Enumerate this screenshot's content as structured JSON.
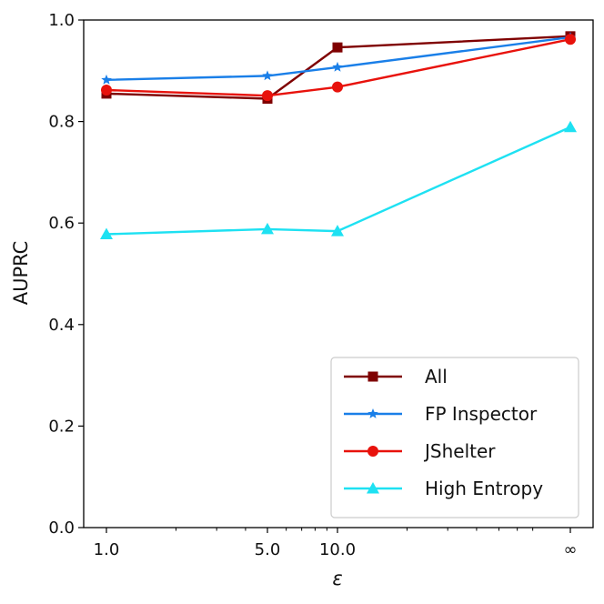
{
  "chart_data": {
    "type": "line",
    "title": "",
    "xlabel": "ε",
    "ylabel": "AUPRC",
    "x_scale": "log",
    "categories": [
      "1.0",
      "5.0",
      "10.0",
      "∞"
    ],
    "ylim": [
      0.0,
      1.0
    ],
    "yticks": [
      "0.0",
      "0.2",
      "0.4",
      "0.6",
      "0.8",
      "1.0"
    ],
    "grid": false,
    "legend_position": "lower-right",
    "series": [
      {
        "name": "All",
        "color": "#7f0000",
        "marker": "square",
        "values": [
          0.855,
          0.845,
          0.946,
          0.968
        ]
      },
      {
        "name": "FP Inspector",
        "color": "#1a7fe8",
        "marker": "star",
        "values": [
          0.882,
          0.89,
          0.907,
          0.966
        ]
      },
      {
        "name": "JShelter",
        "color": "#e8120c",
        "marker": "circle",
        "values": [
          0.862,
          0.851,
          0.868,
          0.962
        ]
      },
      {
        "name": "High Entropy",
        "color": "#1ee1f2",
        "marker": "triangle",
        "values": [
          0.578,
          0.588,
          0.584,
          0.789
        ]
      }
    ]
  }
}
